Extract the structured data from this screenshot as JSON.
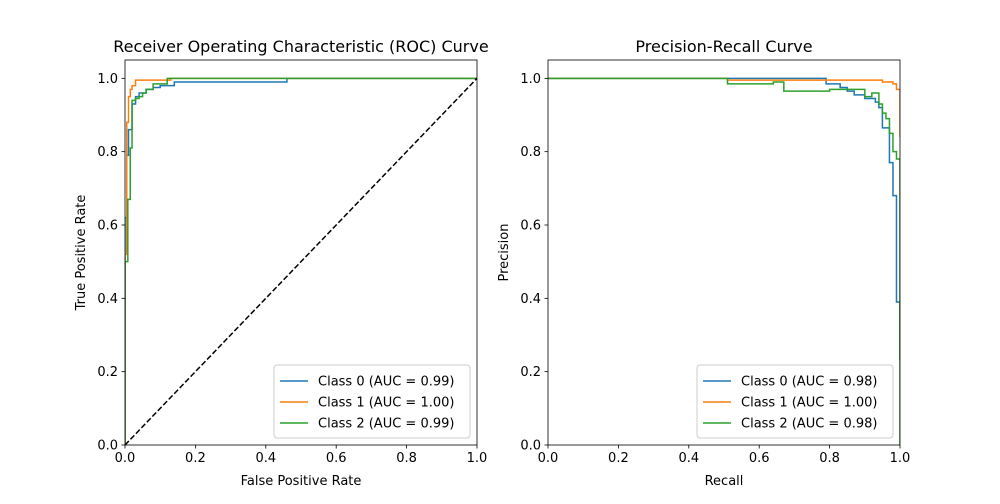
{
  "chart_data": [
    {
      "type": "line",
      "title": "Receiver Operating Characteristic (ROC) Curve",
      "xlabel": "False Positive Rate",
      "ylabel": "True Positive Rate",
      "xlim": [
        0,
        1
      ],
      "ylim": [
        0,
        1.05
      ],
      "xticks": [
        "0.0",
        "0.2",
        "0.4",
        "0.6",
        "0.8",
        "1.0"
      ],
      "yticks": [
        "0.0",
        "0.2",
        "0.4",
        "0.6",
        "0.8",
        "1.0"
      ],
      "grid": false,
      "legend_position": "lower-right",
      "series": [
        {
          "name": "Class 0 (AUC = 0.99)",
          "color": "#1f77b4",
          "x": [
            0,
            0,
            0.005,
            0.005,
            0.01,
            0.01,
            0.02,
            0.02,
            0.03,
            0.03,
            0.04,
            0.04,
            0.06,
            0.06,
            0.08,
            0.08,
            0.1,
            0.1,
            0.14,
            0.14,
            0.46,
            0.46,
            1.0
          ],
          "y": [
            0,
            0.62,
            0.62,
            0.79,
            0.79,
            0.86,
            0.86,
            0.93,
            0.93,
            0.95,
            0.95,
            0.96,
            0.96,
            0.97,
            0.97,
            0.975,
            0.975,
            0.98,
            0.98,
            0.99,
            0.99,
            1.0,
            1.0
          ]
        },
        {
          "name": "Class 1 (AUC = 1.00)",
          "color": "#ff7f0e",
          "x": [
            0,
            0,
            0.005,
            0.005,
            0.01,
            0.01,
            0.015,
            0.015,
            0.02,
            0.02,
            0.03,
            0.03,
            0.13,
            0.13,
            1.0
          ],
          "y": [
            0,
            0.52,
            0.52,
            0.88,
            0.88,
            0.95,
            0.95,
            0.97,
            0.97,
            0.98,
            0.98,
            0.995,
            0.995,
            1.0,
            1.0
          ],
          "dash": false
        },
        {
          "name": "Class 2 (AUC = 0.99)",
          "color": "#2ca02c",
          "x": [
            0,
            0,
            0.008,
            0.008,
            0.015,
            0.015,
            0.02,
            0.02,
            0.03,
            0.03,
            0.04,
            0.04,
            0.05,
            0.05,
            0.06,
            0.06,
            0.08,
            0.08,
            0.12,
            0.12,
            1.0
          ],
          "y": [
            0,
            0.5,
            0.5,
            0.67,
            0.67,
            0.81,
            0.81,
            0.94,
            0.94,
            0.945,
            0.945,
            0.95,
            0.95,
            0.96,
            0.96,
            0.97,
            0.97,
            0.985,
            0.985,
            1.0,
            1.0
          ]
        },
        {
          "name": "",
          "color": "#000000",
          "dash": true,
          "x": [
            0,
            1
          ],
          "y": [
            0,
            1
          ]
        }
      ]
    },
    {
      "type": "line",
      "title": "Precision-Recall Curve",
      "xlabel": "Recall",
      "ylabel": "Precision",
      "xlim": [
        0,
        1
      ],
      "ylim": [
        0,
        1.05
      ],
      "xticks": [
        "0.0",
        "0.2",
        "0.4",
        "0.6",
        "0.8",
        "1.0"
      ],
      "yticks": [
        "0.0",
        "0.2",
        "0.4",
        "0.6",
        "0.8",
        "1.0"
      ],
      "grid": false,
      "legend_position": "lower-right",
      "series": [
        {
          "name": "Class 0 (AUC = 0.98)",
          "color": "#1f77b4",
          "x": [
            0,
            0.79,
            0.79,
            0.83,
            0.83,
            0.85,
            0.85,
            0.87,
            0.87,
            0.9,
            0.9,
            0.93,
            0.93,
            0.94,
            0.94,
            0.95,
            0.95,
            0.97,
            0.97,
            0.98,
            0.98,
            0.99,
            0.99,
            1.0,
            1.0
          ],
          "y": [
            1.0,
            1.0,
            0.985,
            0.985,
            0.975,
            0.975,
            0.965,
            0.965,
            0.955,
            0.955,
            0.945,
            0.945,
            0.935,
            0.935,
            0.92,
            0.92,
            0.865,
            0.865,
            0.77,
            0.77,
            0.68,
            0.68,
            0.39,
            0.39,
            0.23
          ]
        },
        {
          "name": "Class 1 (AUC = 1.00)",
          "color": "#ff7f0e",
          "x": [
            0,
            0.51,
            0.51,
            0.95,
            0.95,
            0.98,
            0.98,
            0.99,
            0.99,
            1.0,
            1.0
          ],
          "y": [
            1.0,
            1.0,
            0.995,
            0.995,
            0.99,
            0.99,
            0.985,
            0.985,
            0.97,
            0.97,
            0.84
          ]
        },
        {
          "name": "Class 2 (AUC = 0.98)",
          "color": "#2ca02c",
          "x": [
            0,
            0.51,
            0.51,
            0.64,
            0.64,
            0.67,
            0.67,
            0.8,
            0.8,
            0.9,
            0.9,
            0.92,
            0.92,
            0.94,
            0.94,
            0.95,
            0.95,
            0.96,
            0.96,
            0.97,
            0.97,
            0.98,
            0.98,
            0.99,
            0.99,
            1.0,
            1.0
          ],
          "y": [
            1.0,
            1.0,
            0.985,
            0.985,
            0.99,
            0.99,
            0.965,
            0.965,
            0.97,
            0.97,
            0.95,
            0.95,
            0.96,
            0.96,
            0.93,
            0.93,
            0.905,
            0.905,
            0.89,
            0.89,
            0.85,
            0.85,
            0.8,
            0.8,
            0.78,
            0.78,
            0.0
          ]
        }
      ]
    }
  ]
}
